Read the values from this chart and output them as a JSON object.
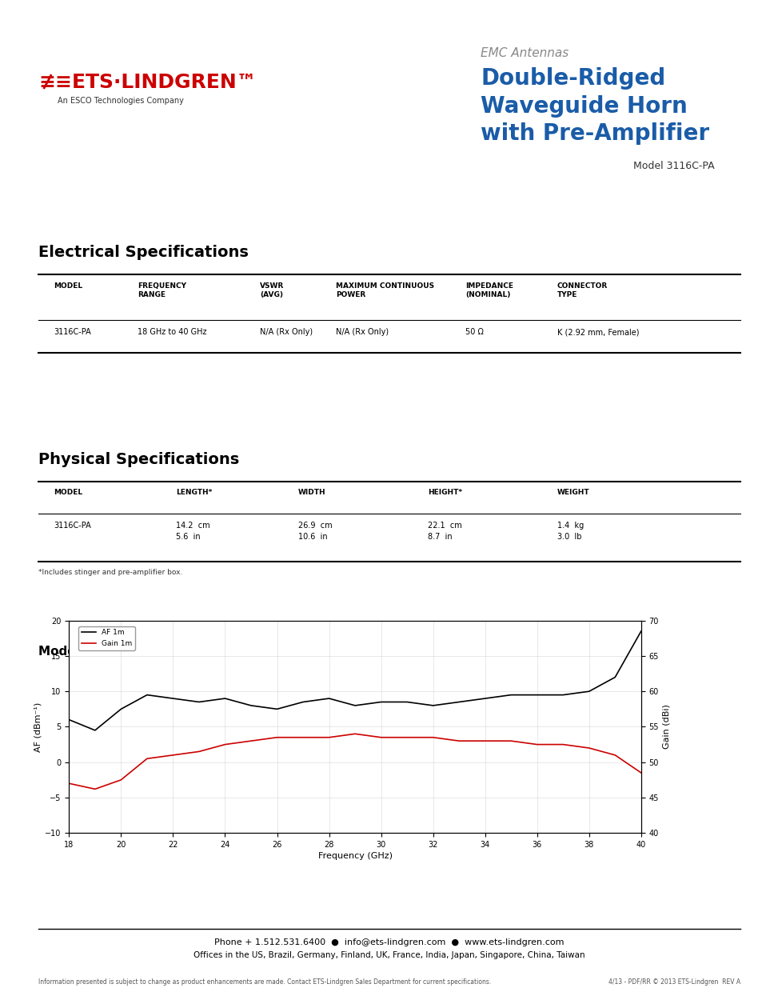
{
  "title_emc": "EMC Antennas",
  "title_main": "Double-Ridged\nWaveguide Horn\nwith Pre-Amplifier",
  "title_model": "Model 3116C-PA",
  "title_color": "#1a5ca8",
  "emc_color": "#888888",
  "elec_spec_title": "Electrical Specifications",
  "elec_headers": [
    "MODEL",
    "FREQUENCY\nRANGE",
    "VSWR\n(AVG)",
    "MAXIMUM CONTINUOUS\nPOWER",
    "IMPEDANCE\n(NOMINAL)",
    "CONNECTOR\nTYPE"
  ],
  "elec_data": [
    [
      "3116C-PA",
      "18 GHz to 40 GHz",
      "N/A (Rx Only)",
      "N/A (Rx Only)",
      "50 Ω",
      "K (2.92 mm, Female)"
    ]
  ],
  "phys_spec_title": "Physical Specifications",
  "phys_headers": [
    "MODEL",
    "LENGTH*",
    "WIDTH",
    "HEIGHT*",
    "WEIGHT"
  ],
  "phys_data": [
    [
      "3116C-PA",
      "14.2  cm\n5.6  in",
      "26.9  cm\n10.6  in",
      "22.1  cm\n8.7  in",
      "1.4  kg\n3.0  lb"
    ]
  ],
  "phys_footnote": "*Includes stinger and pre-amplifier box.",
  "chart_title": "Model 3116C-PA Typical Antenna Factor and Gain",
  "af_freq": [
    18,
    19,
    20,
    21,
    22,
    23,
    24,
    25,
    26,
    27,
    28,
    29,
    30,
    31,
    32,
    33,
    34,
    35,
    36,
    37,
    38,
    39,
    40
  ],
  "af_values": [
    6.0,
    4.5,
    7.5,
    9.5,
    9.0,
    8.5,
    9.0,
    8.0,
    7.5,
    8.5,
    9.0,
    8.0,
    8.5,
    8.5,
    8.0,
    8.5,
    9.0,
    9.5,
    9.5,
    9.5,
    10.0,
    12.0,
    18.5
  ],
  "gain_freq": [
    18,
    19,
    20,
    21,
    22,
    23,
    24,
    25,
    26,
    27,
    28,
    29,
    30,
    31,
    32,
    33,
    34,
    35,
    36,
    37,
    38,
    39,
    40
  ],
  "gain_values": [
    -3.0,
    -3.8,
    -2.5,
    0.5,
    1.0,
    1.5,
    2.5,
    3.0,
    3.5,
    3.5,
    3.5,
    4.0,
    3.5,
    3.5,
    3.5,
    3.0,
    3.0,
    3.0,
    2.5,
    2.5,
    2.0,
    1.0,
    -1.5
  ],
  "af_color": "#000000",
  "gain_color": "#cc0000",
  "ylabel_af": "AF (dBm⁻¹)",
  "ylabel_gain": "Gain (dBi)",
  "xlabel_chart": "Frequency (GHz)",
  "af_ylim": [
    -10,
    20
  ],
  "af_yticks": [
    -10,
    -5,
    0,
    5,
    10,
    15,
    20
  ],
  "gain_ylim": [
    40,
    70
  ],
  "gain_yticks": [
    40,
    45,
    50,
    55,
    60,
    65,
    70
  ],
  "xlim": [
    18,
    40
  ],
  "xticks": [
    18,
    20,
    22,
    24,
    26,
    28,
    30,
    32,
    34,
    36,
    38,
    40
  ],
  "footer_line1": "Phone + 1.512.531.6400  ●  info@ets-lindgren.com  ●  www.ets-lindgren.com",
  "footer_line2": "Offices in the US, Brazil, Germany, Finland, UK, France, India, Japan, Singapore, China, Taiwan",
  "footer_small": "Information presented is subject to change as product enhancements are made. Contact ETS-Lindgren Sales Department for current specifications.",
  "footer_small_right": "4/13 - PDF/RR © 2013 ETS-Lindgren  REV A",
  "bg_color": "#ffffff",
  "table_header_color": "#000000",
  "table_line_color": "#000000"
}
